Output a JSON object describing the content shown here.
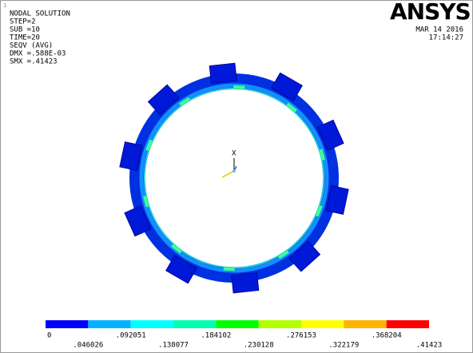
{
  "window_mark": "1",
  "info": [
    "NODAL SOLUTION",
    "STEP=2",
    "SUB =10",
    "TIME=20",
    "SEQV     (AVG)",
    "DMX =.588E-03",
    "SMX =.41423"
  ],
  "logo": "ANSYS",
  "date": "MAR 14 2016",
  "time": "17:14:27",
  "triad_label": "X",
  "legend": {
    "labels": [
      "0",
      ".046026",
      ".092051",
      ".138077",
      ".184102",
      ".230128",
      ".276153",
      ".322179",
      ".368204",
      ".41423"
    ],
    "colors": [
      "#0000ff",
      "#00b2ff",
      "#00ffff",
      "#00ffb2",
      "#00ff00",
      "#b2ff00",
      "#ffff00",
      "#ffb200",
      "#ff0000"
    ]
  }
}
